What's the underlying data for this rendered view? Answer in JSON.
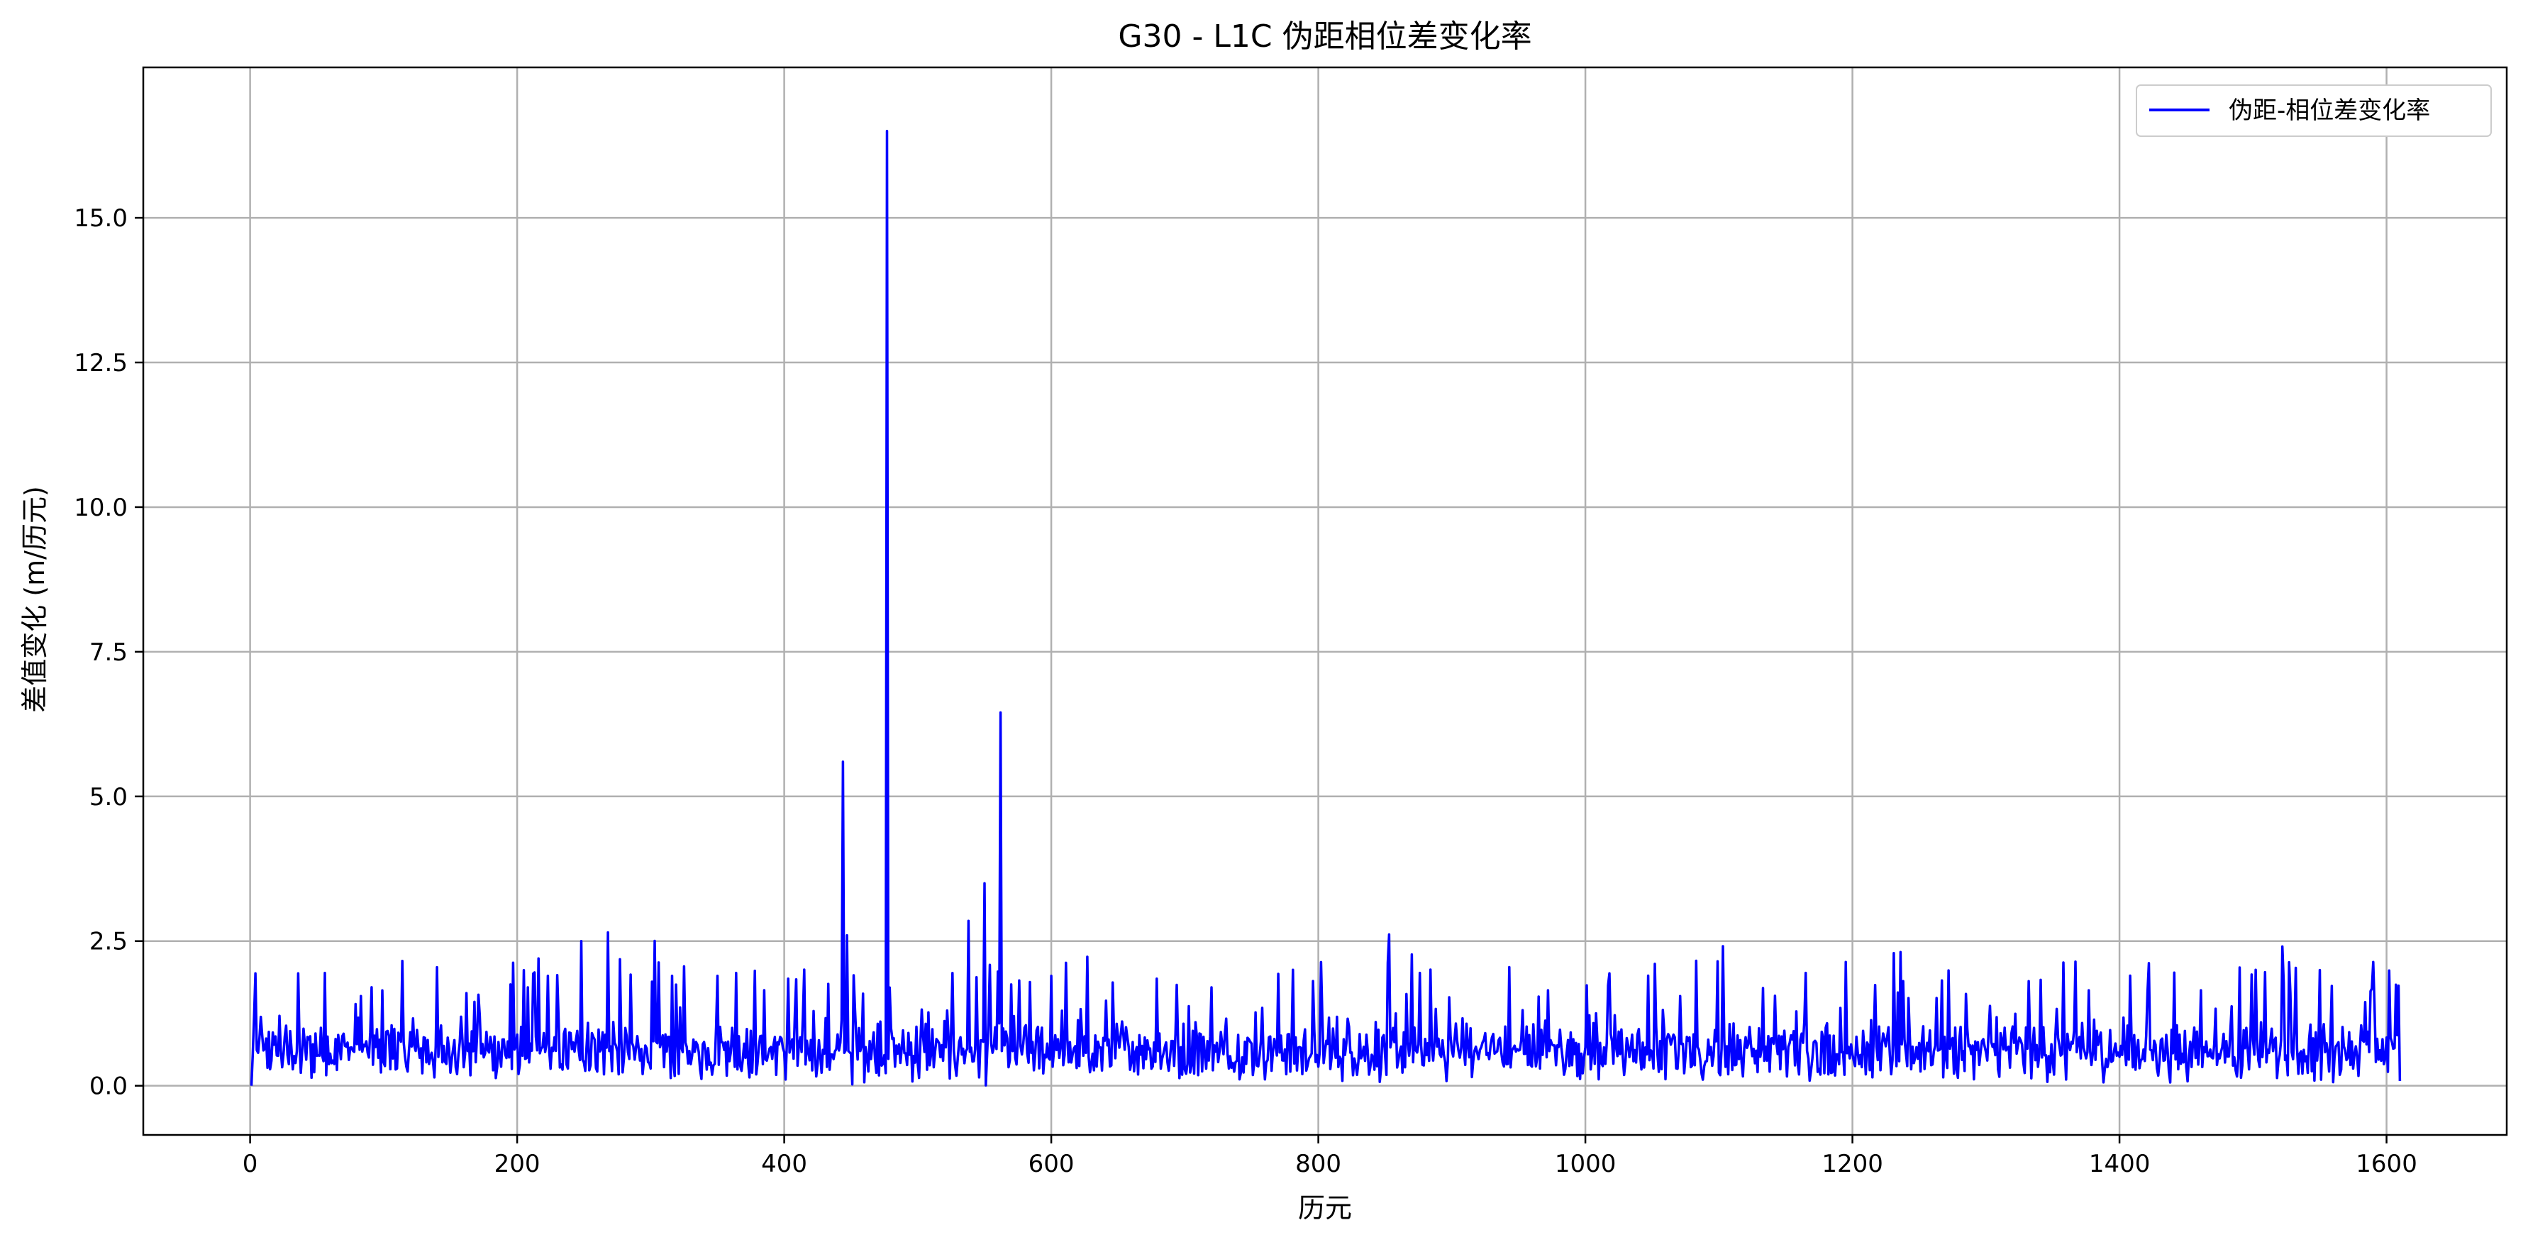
{
  "chart_data": {
    "type": "line",
    "title": "G30 - L1C 伪距相位差变化率",
    "xlabel": "历元",
    "ylabel": "差值变化 (m/历元)",
    "xlim": [
      -80,
      1690
    ],
    "ylim": [
      -0.85,
      17.6
    ],
    "xticks": [
      0,
      200,
      400,
      600,
      800,
      1000,
      1200,
      1400,
      1600
    ],
    "xtick_labels": [
      "0",
      "200",
      "400",
      "600",
      "800",
      "1000",
      "1200",
      "1400",
      "1600"
    ],
    "yticks": [
      0,
      2.5,
      5,
      7.5,
      10,
      12.5,
      15
    ],
    "ytick_labels": [
      "0.0",
      "2.5",
      "5.0",
      "7.5",
      "10.0",
      "12.5",
      "15.0"
    ],
    "grid": true,
    "legend_position": "top-right",
    "series": [
      {
        "name": "伪距-相位差变化率",
        "color": "#0000ff",
        "x_start": 1,
        "x_step": 1,
        "description_of_values": "noise",
        "baseline_values": [
          0.0,
          0.6,
          1.3,
          0.4,
          0.2,
          0.8,
          0.3,
          1.2,
          0.5,
          0.1,
          0.7,
          0.4,
          0.3,
          0.9,
          0.2,
          0.5,
          0.6,
          0.1,
          0.4,
          0.8,
          0.3,
          1.2,
          0.6,
          0.2,
          0.5,
          0.3,
          0.7,
          0.4,
          0.1,
          0.6,
          0.9,
          0.3,
          0.5,
          0.2,
          0.4,
          0.7,
          0.3,
          0.1,
          0.5,
          0.6,
          0.2,
          0.4,
          0.8,
          0.3,
          0.6,
          0.1,
          0.5,
          0.3,
          0.7,
          0.4
        ],
        "spikes": [
          {
            "x": 83,
            "y": 1.55
          },
          {
            "x": 162,
            "y": 1.6
          },
          {
            "x": 195,
            "y": 1.75
          },
          {
            "x": 208,
            "y": 1.7
          },
          {
            "x": 216,
            "y": 2.2
          },
          {
            "x": 223,
            "y": 1.9
          },
          {
            "x": 248,
            "y": 2.5
          },
          {
            "x": 268,
            "y": 2.65
          },
          {
            "x": 316,
            "y": 1.9
          },
          {
            "x": 350,
            "y": 1.9
          },
          {
            "x": 364,
            "y": 1.95
          },
          {
            "x": 403,
            "y": 1.85
          },
          {
            "x": 444,
            "y": 5.6
          },
          {
            "x": 447,
            "y": 2.6
          },
          {
            "x": 477,
            "y": 16.5
          },
          {
            "x": 538,
            "y": 2.85
          },
          {
            "x": 550,
            "y": 3.5
          },
          {
            "x": 562,
            "y": 6.45
          },
          {
            "x": 570,
            "y": 1.75
          },
          {
            "x": 600,
            "y": 1.9
          },
          {
            "x": 679,
            "y": 1.85
          },
          {
            "x": 720,
            "y": 1.7
          },
          {
            "x": 972,
            "y": 1.65
          },
          {
            "x": 1099,
            "y": 2.15
          },
          {
            "x": 1165,
            "y": 1.95
          },
          {
            "x": 1377,
            "y": 1.65
          },
          {
            "x": 1461,
            "y": 1.65
          },
          {
            "x": 1528,
            "y": 1.6
          }
        ],
        "n_points": 1610
      }
    ]
  }
}
